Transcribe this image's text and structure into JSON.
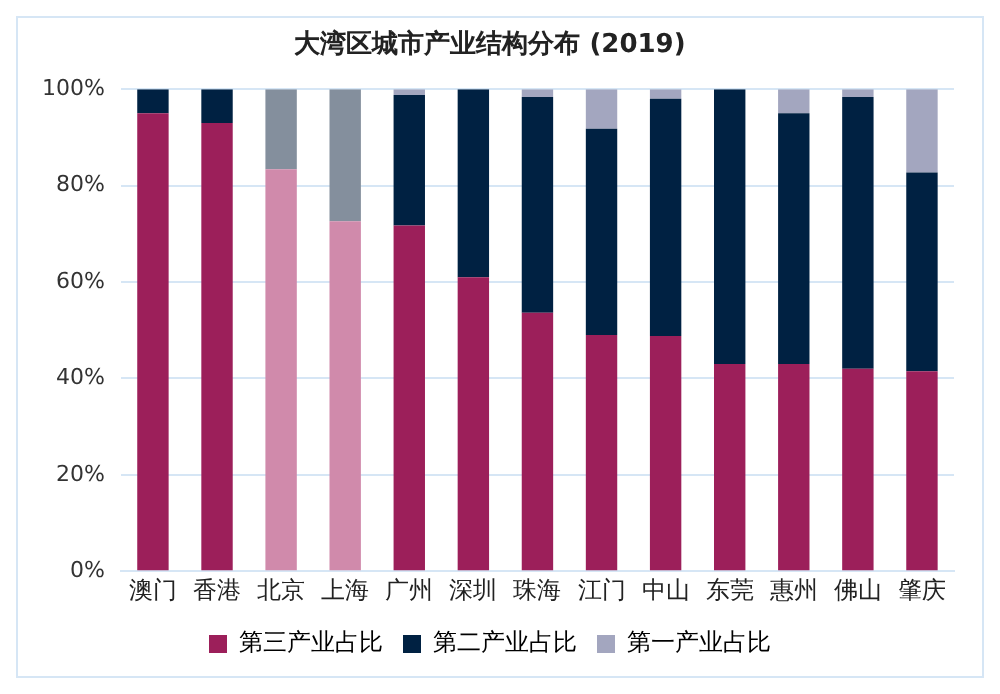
{
  "chart_data": {
    "type": "bar",
    "title": "大湾区城市产业结构分布 (2019)",
    "stacked": true,
    "categories": [
      "澳门",
      "香港",
      "北京",
      "上海",
      "广州",
      "深圳",
      "珠海",
      "江门",
      "中山",
      "东莞",
      "惠州",
      "佛山",
      "肇庆"
    ],
    "series": [
      {
        "name": "第三产业占比",
        "color": "#9c1f5a",
        "colors": [
          "#9c1f5a",
          "#9c1f5a",
          "#d08aab",
          "#d08aab",
          "#9c1f5a",
          "#9c1f5a",
          "#9c1f5a",
          "#9c1f5a",
          "#9c1f5a",
          "#9c1f5a",
          "#9c1f5a",
          "#9c1f5a",
          "#9c1f5a"
        ],
        "values": [
          95,
          93,
          83.4,
          72.6,
          71.7,
          61,
          53.6,
          49,
          48.8,
          43,
          43,
          42,
          41.5
        ]
      },
      {
        "name": "第二产业占比",
        "color": "#002142",
        "colors": [
          "#002142",
          "#002142",
          "#848f9d",
          "#848f9d",
          "#002142",
          "#002142",
          "#002142",
          "#002142",
          "#002142",
          "#002142",
          "#002142",
          "#002142",
          "#002142"
        ],
        "values": [
          5,
          7,
          16.6,
          27.4,
          27.1,
          39,
          44.8,
          42.8,
          49.2,
          57,
          52,
          56.4,
          41.2
        ]
      },
      {
        "name": "第一产业占比",
        "color": "#a3a6bf",
        "colors": [
          "#a3a6bf",
          "#a3a6bf",
          "#a3a6bf",
          "#a3a6bf",
          "#a3a6bf",
          "#a3a6bf",
          "#a3a6bf",
          "#a3a6bf",
          "#a3a6bf",
          "#a3a6bf",
          "#a3a6bf",
          "#a3a6bf",
          "#a3a6bf"
        ],
        "values": [
          0,
          0,
          0,
          0,
          1.2,
          0,
          1.6,
          8.2,
          2,
          0,
          5,
          1.6,
          17.3
        ]
      }
    ],
    "ylim": [
      0,
      100
    ],
    "yticks": [
      {
        "value": 0,
        "label": "0%"
      },
      {
        "value": 20,
        "label": "20%"
      },
      {
        "value": 40,
        "label": "40%"
      },
      {
        "value": 60,
        "label": "60%"
      },
      {
        "value": 80,
        "label": "80%"
      },
      {
        "value": 100,
        "label": "100%"
      }
    ],
    "grid": "y",
    "legend": "bottom"
  }
}
